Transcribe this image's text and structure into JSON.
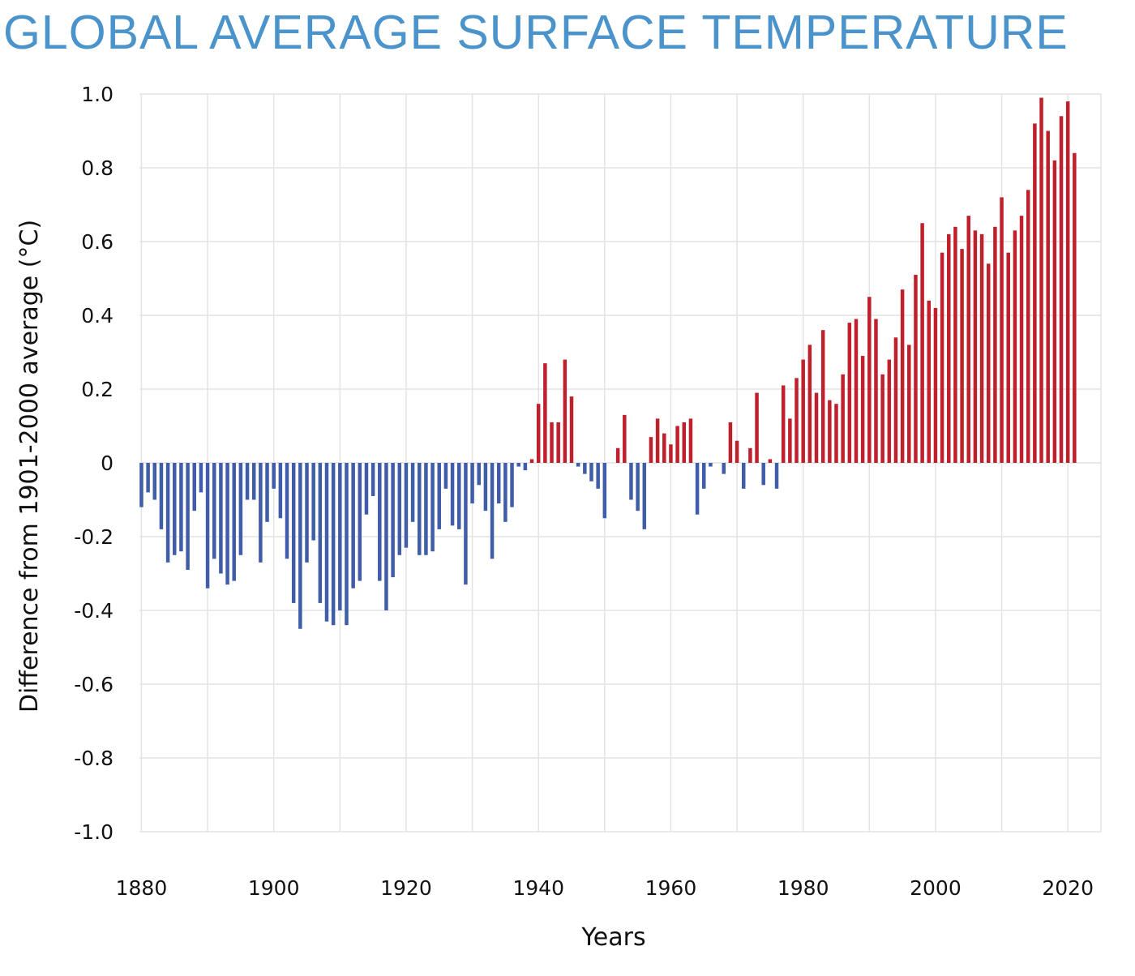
{
  "chart_data": {
    "type": "bar",
    "title": "GLOBAL AVERAGE SURFACE TEMPERATURE",
    "x_label": "Years",
    "y_label": "Difference from 1901-2000 average (°C)",
    "x": [
      1880,
      1881,
      1882,
      1883,
      1884,
      1885,
      1886,
      1887,
      1888,
      1889,
      1890,
      1891,
      1892,
      1893,
      1894,
      1895,
      1896,
      1897,
      1898,
      1899,
      1900,
      1901,
      1902,
      1903,
      1904,
      1905,
      1906,
      1907,
      1908,
      1909,
      1910,
      1911,
      1912,
      1913,
      1914,
      1915,
      1916,
      1917,
      1918,
      1919,
      1920,
      1921,
      1922,
      1923,
      1924,
      1925,
      1926,
      1927,
      1928,
      1929,
      1930,
      1931,
      1932,
      1933,
      1934,
      1935,
      1936,
      1937,
      1938,
      1939,
      1940,
      1941,
      1942,
      1943,
      1944,
      1945,
      1946,
      1947,
      1948,
      1949,
      1950,
      1951,
      1952,
      1953,
      1954,
      1955,
      1956,
      1957,
      1958,
      1959,
      1960,
      1961,
      1962,
      1963,
      1964,
      1965,
      1966,
      1967,
      1968,
      1969,
      1970,
      1971,
      1972,
      1973,
      1974,
      1975,
      1976,
      1977,
      1978,
      1979,
      1980,
      1981,
      1982,
      1983,
      1984,
      1985,
      1986,
      1987,
      1988,
      1989,
      1990,
      1991,
      1992,
      1993,
      1994,
      1995,
      1996,
      1997,
      1998,
      1999,
      2000,
      2001,
      2002,
      2003,
      2004,
      2005,
      2006,
      2007,
      2008,
      2009,
      2010,
      2011,
      2012,
      2013,
      2014,
      2015,
      2016,
      2017,
      2018,
      2019,
      2020,
      2021
    ],
    "values": [
      -0.12,
      -0.08,
      -0.1,
      -0.18,
      -0.27,
      -0.25,
      -0.24,
      -0.29,
      -0.13,
      -0.08,
      -0.34,
      -0.26,
      -0.3,
      -0.33,
      -0.32,
      -0.25,
      -0.1,
      -0.1,
      -0.27,
      -0.16,
      -0.07,
      -0.15,
      -0.26,
      -0.38,
      -0.45,
      -0.27,
      -0.21,
      -0.38,
      -0.43,
      -0.44,
      -0.4,
      -0.44,
      -0.34,
      -0.32,
      -0.14,
      -0.09,
      -0.32,
      -0.4,
      -0.31,
      -0.25,
      -0.23,
      -0.16,
      -0.25,
      -0.25,
      -0.24,
      -0.18,
      -0.07,
      -0.17,
      -0.18,
      -0.33,
      -0.11,
      -0.06,
      -0.13,
      -0.26,
      -0.11,
      -0.16,
      -0.12,
      -0.01,
      -0.02,
      0.01,
      0.16,
      0.27,
      0.11,
      0.11,
      0.28,
      0.18,
      -0.01,
      -0.03,
      -0.05,
      -0.07,
      -0.15,
      0.0,
      0.04,
      0.13,
      -0.1,
      -0.13,
      -0.18,
      0.07,
      0.12,
      0.08,
      0.05,
      0.1,
      0.11,
      0.12,
      -0.14,
      -0.07,
      -0.01,
      0.0,
      -0.03,
      0.11,
      0.06,
      -0.07,
      0.04,
      0.19,
      -0.06,
      0.01,
      -0.07,
      0.21,
      0.12,
      0.23,
      0.28,
      0.32,
      0.19,
      0.36,
      0.17,
      0.16,
      0.24,
      0.38,
      0.39,
      0.29,
      0.45,
      0.39,
      0.24,
      0.28,
      0.34,
      0.47,
      0.32,
      0.51,
      0.65,
      0.44,
      0.42,
      0.57,
      0.62,
      0.64,
      0.58,
      0.67,
      0.63,
      0.62,
      0.54,
      0.64,
      0.72,
      0.57,
      0.63,
      0.67,
      0.74,
      0.92,
      0.99,
      0.9,
      0.82,
      0.94,
      0.98,
      0.84
    ],
    "positive_color": "#c0202b",
    "negative_color": "#3f5da8",
    "xlim": [
      1879.7,
      2025
    ],
    "xticks": [
      1880,
      1900,
      1920,
      1940,
      1960,
      1980,
      2000,
      2020
    ],
    "xgrid": [
      1880,
      1890,
      1900,
      1910,
      1920,
      1930,
      1940,
      1950,
      1960,
      1970,
      1980,
      1990,
      2000,
      2010,
      2020
    ],
    "ylim": [
      -1.0,
      1.0
    ],
    "yticks": [
      {
        "value": -1.0,
        "label": "-1.0"
      },
      {
        "value": -0.8,
        "label": "-0.8"
      },
      {
        "value": -0.6,
        "label": "-0.6"
      },
      {
        "value": -0.4,
        "label": "-0.4"
      },
      {
        "value": -0.2,
        "label": "-0.2"
      },
      0,
      {
        "value": 0.2,
        "label": "0.2"
      },
      {
        "value": 0.4,
        "label": "0.4"
      },
      {
        "value": 0.6,
        "label": "0.6"
      },
      {
        "value": 0.8,
        "label": "0.8"
      },
      {
        "value": 1.0,
        "label": "1.0"
      }
    ],
    "grid": true
  }
}
